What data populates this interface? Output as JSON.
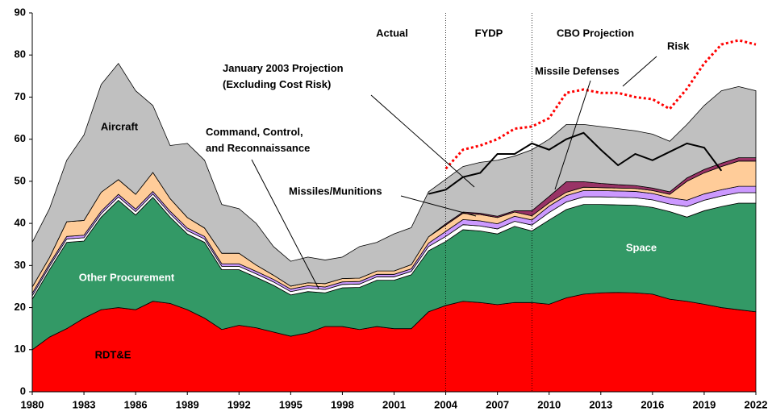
{
  "chart_data": {
    "type": "stacked_area",
    "x": [
      1980,
      1981,
      1982,
      1983,
      1984,
      1985,
      1986,
      1987,
      1988,
      1989,
      1990,
      1991,
      1992,
      1993,
      1994,
      1995,
      1996,
      1997,
      1998,
      1999,
      2000,
      2001,
      2002,
      2003,
      2004,
      2005,
      2006,
      2007,
      2008,
      2009,
      2010,
      2011,
      2012,
      2013,
      2014,
      2015,
      2016,
      2017,
      2018,
      2019,
      2020,
      2021,
      2022
    ],
    "xlim": [
      1980,
      2022
    ],
    "xticks": [
      1980,
      1983,
      1986,
      1989,
      1992,
      1995,
      1998,
      2001,
      2004,
      2007,
      2010,
      2013,
      2016,
      2019,
      2022
    ],
    "ylim": [
      0,
      90
    ],
    "yticks": [
      0,
      10,
      20,
      30,
      40,
      50,
      60,
      70,
      80,
      90
    ],
    "series": [
      {
        "name": "RDT&E",
        "color": "#ff0000",
        "values": [
          10,
          13,
          15,
          17.5,
          19.5,
          20,
          19.5,
          21.5,
          21,
          19.5,
          17.5,
          14.8,
          15.8,
          15.2,
          14.2,
          13.2,
          14,
          15.5,
          15.5,
          14.8,
          15.5,
          15,
          15,
          19,
          20.5,
          21.5,
          21.2,
          20.7,
          21.2,
          21.2,
          20.8,
          22.3,
          23.2,
          23.5,
          23.6,
          23.5,
          23.2,
          22,
          21.5,
          20.8,
          20,
          19.5,
          19
        ]
      },
      {
        "name": "Other Procurement",
        "color": "#339966",
        "values": [
          12,
          16,
          20.5,
          18.3,
          22,
          25.5,
          22.5,
          24.7,
          20.5,
          18,
          18,
          14.2,
          13.2,
          12,
          11.1,
          9.8,
          9.8,
          8,
          9.2,
          10,
          11,
          11.5,
          12.8,
          14.5,
          15.2,
          17,
          17,
          16.8,
          18.1,
          17,
          20,
          21,
          21.3,
          21,
          20.8,
          20.8,
          20.6,
          20.8,
          20,
          22.2,
          24,
          25.3,
          25.8
        ]
      },
      {
        "name": "Space",
        "color": "#ffffff",
        "values": [
          0.8,
          0.8,
          0.8,
          0.8,
          0.8,
          0.8,
          0.8,
          0.8,
          0.8,
          0.8,
          0.8,
          0.8,
          0.8,
          0.8,
          0.8,
          0.8,
          0.8,
          0.8,
          0.8,
          0.8,
          0.8,
          0.8,
          0.8,
          1,
          1.2,
          1.2,
          1.2,
          1.2,
          1.2,
          1.4,
          1.8,
          1.8,
          1.8,
          1.8,
          1.8,
          1.8,
          1.8,
          1.8,
          2.5,
          2.5,
          2.5,
          2.5,
          2.5
        ]
      },
      {
        "name": "Command, Control, and Reconnaissance",
        "color": "#cc99ff",
        "values": [
          0.6,
          0.6,
          0.6,
          0.6,
          0.6,
          0.6,
          0.6,
          0.6,
          0.6,
          0.6,
          0.6,
          0.6,
          0.6,
          0.6,
          0.6,
          0.6,
          0.6,
          0.6,
          0.6,
          0.6,
          0.6,
          0.6,
          0.6,
          0.8,
          1.2,
          1.2,
          1.2,
          1.2,
          1.2,
          1.2,
          1.5,
          1.5,
          1.5,
          1.5,
          1.5,
          1.5,
          1.5,
          1.5,
          1.5,
          1.5,
          1.5,
          1.5,
          1.5
        ]
      },
      {
        "name": "Missiles/Munitions",
        "color": "#ffcc99",
        "values": [
          1.5,
          1.5,
          3.5,
          3.5,
          4.5,
          3.5,
          3.5,
          4.5,
          3,
          2.5,
          2,
          2.5,
          2.5,
          1.5,
          1,
          0.7,
          0.7,
          0.8,
          0.8,
          0.8,
          0.8,
          0.8,
          1,
          1.5,
          1.5,
          1.5,
          1.5,
          1.5,
          1,
          1,
          0.8,
          0.8,
          0.8,
          0.7,
          0.7,
          0.7,
          0.7,
          0.8,
          4.5,
          5,
          5.5,
          6,
          6
        ]
      },
      {
        "name": "Missile Defenses",
        "color": "#993366",
        "values": [
          0,
          0,
          0,
          0,
          0,
          0,
          0,
          0,
          0,
          0,
          0,
          0,
          0,
          0,
          0,
          0,
          0,
          0,
          0,
          0,
          0,
          0,
          0,
          0,
          0.3,
          0.3,
          0.3,
          0.3,
          0.3,
          1.2,
          1.5,
          2.5,
          1.3,
          1,
          0.8,
          0.7,
          0.6,
          0.6,
          0.8,
          0.8,
          0.8,
          0.8,
          0.8
        ]
      },
      {
        "name": "Aircraft",
        "color": "#c0c0c0",
        "values": [
          10.6,
          11.6,
          14.6,
          20.3,
          25.6,
          27.6,
          24.6,
          15.9,
          12.6,
          17.6,
          16.1,
          11.6,
          10.6,
          9.9,
          6.8,
          5.9,
          6.1,
          5.6,
          5.1,
          7.5,
          6.8,
          8.8,
          8.8,
          10.7,
          10.6,
          10.8,
          12.1,
          13.3,
          13,
          14.5,
          13.6,
          13.6,
          13.6,
          13.5,
          13.3,
          13,
          12.8,
          12,
          12.7,
          15.2,
          17.2,
          16.9,
          15.9
        ]
      }
    ],
    "lines": [
      {
        "name": "January 2003 Projection (Excluding Cost Risk)",
        "color": "#000000",
        "style": "solid",
        "values": [
          null,
          null,
          null,
          null,
          null,
          null,
          null,
          null,
          null,
          null,
          null,
          null,
          null,
          null,
          null,
          null,
          null,
          null,
          null,
          null,
          null,
          null,
          null,
          47,
          48,
          51,
          52,
          56.5,
          56.5,
          59,
          57.5,
          60,
          61.5,
          57.5,
          53.8,
          56.5,
          55,
          57,
          59,
          58,
          52.5,
          null,
          null
        ]
      },
      {
        "name": "Risk",
        "color": "#ff0000",
        "style": "dotted",
        "values": [
          null,
          null,
          null,
          null,
          null,
          null,
          null,
          null,
          null,
          null,
          null,
          null,
          null,
          null,
          null,
          null,
          null,
          null,
          null,
          null,
          null,
          null,
          null,
          null,
          53,
          57.5,
          58.5,
          60,
          62.5,
          63,
          65,
          71,
          71.8,
          71,
          71,
          70,
          69.5,
          67.2,
          72,
          78,
          82.5,
          83.5,
          82.5
        ]
      }
    ],
    "dividers": [
      2004,
      2009
    ],
    "annotations": [
      "Actual",
      "FYDP",
      "CBO Projection"
    ]
  }
}
